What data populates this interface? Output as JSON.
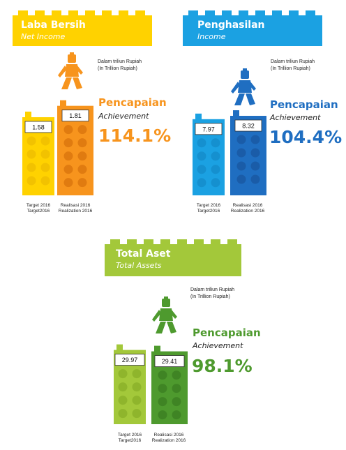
{
  "chart_data": [
    {
      "type": "bar",
      "title": "Laba Bersih",
      "subtitle": "Net Income",
      "unit_label_line1": "Dalam triliun Rupiah",
      "unit_label_line2": "(In Trillion Rupiah)",
      "categories": [
        {
          "line1": "Target 2016",
          "line2": "Target2016"
        },
        {
          "line1": "Realisasi 2016",
          "line2": "Realization 2016"
        }
      ],
      "values": [
        1.58,
        1.81
      ],
      "value_labels": [
        "1.58",
        "1.81"
      ],
      "achievement_title": "Pencapaian",
      "achievement_subtitle": "Achievement",
      "achievement_value": "114.1%",
      "colors": {
        "banner": "#FFD200",
        "light": "#FFD200",
        "dark": "#F7941D",
        "dark_dot": "#E07B10",
        "light_dot": "#F2C200",
        "accent": "#F7941D"
      }
    },
    {
      "type": "bar",
      "title": "Penghasilan",
      "subtitle": "Income",
      "unit_label_line1": "Dalam triliun Rupiah",
      "unit_label_line2": "(In Trillion Rupiah)",
      "categories": [
        {
          "line1": "Target 2016",
          "line2": "Target2016"
        },
        {
          "line1": "Realisasi 2016",
          "line2": "Realization 2016"
        }
      ],
      "values": [
        7.97,
        8.32
      ],
      "value_labels": [
        "7.97",
        "8.32"
      ],
      "achievement_title": "Pencapaian",
      "achievement_subtitle": "Achievement",
      "achievement_value": "104.4%",
      "colors": {
        "banner": "#1BA1E2",
        "light": "#1BA1E2",
        "dark": "#1F6EC1",
        "dark_dot": "#1A5CA8",
        "light_dot": "#1590CF",
        "accent": "#1F6EC1"
      }
    },
    {
      "type": "bar",
      "title": "Total Aset",
      "subtitle": "Total Assets",
      "unit_label_line1": "Dalam triliun Rupiah",
      "unit_label_line2": "(In Trillion Rupiah)",
      "categories": [
        {
          "line1": "Target 2016",
          "line2": "Target2016"
        },
        {
          "line1": "Realisasi 2016",
          "line2": "Realization 2016"
        }
      ],
      "values": [
        29.97,
        29.41
      ],
      "value_labels": [
        "29.97",
        "29.41"
      ],
      "achievement_title": "Pencapaian",
      "achievement_subtitle": "Achievement",
      "achievement_value": "98.1%",
      "colors": {
        "banner": "#A3C83A",
        "light": "#A3C83A",
        "dark": "#4E9A2E",
        "dark_dot": "#3F8424",
        "light_dot": "#8FB52C",
        "accent": "#4E9A2E"
      }
    }
  ]
}
